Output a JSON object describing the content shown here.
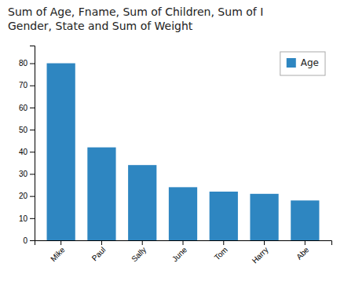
{
  "chart_data": {
    "type": "bar",
    "title": "Sum of Age, Fname, Sum of Children, Sum of I",
    "subtitle": "Gender, State and Sum of Weight",
    "categories": [
      "Mike",
      "Paul",
      "Sally",
      "June",
      "Tom",
      "Harry",
      "Abe"
    ],
    "series": [
      {
        "name": "Age",
        "color": "#2e86c1",
        "values": [
          80,
          42,
          34,
          24,
          22,
          21,
          18
        ]
      }
    ],
    "ylim": [
      0,
      88
    ],
    "yticks": [
      0,
      10,
      20,
      30,
      40,
      50,
      60,
      70,
      80
    ],
    "grid": false,
    "legend": "upper right"
  }
}
